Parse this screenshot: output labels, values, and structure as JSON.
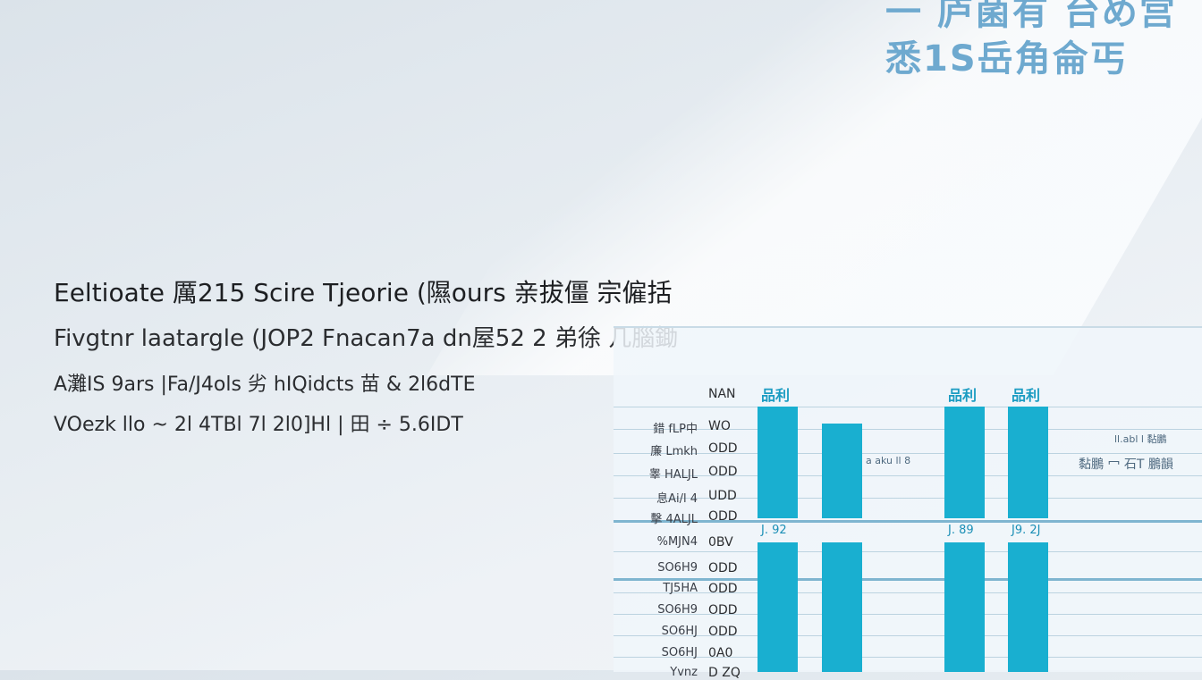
{
  "top_right": {
    "line1": "一 庐菌有 台め宫",
    "line2": "悉1S岳角侖丐",
    "color": "#6ea9cf"
  },
  "headlines": [
    "Eeltioate 厲215 Scire Tjeorie (隰ours 亲拔僵 宗僱括",
    "Fivgtnr laatargle (JOP2 Fnacan7a dn屋52 2 弟徐 几腦鋤",
    "A灘IS 9ars  |Fa/J4ols 劣 hIQidcts  苗 & 2l6dTE",
    "VOezk llo ~ 2l 4TBl 7l 2l0]Hl  | 田 ÷ 5.6IDT"
  ],
  "table": {
    "accent": "#19afd0",
    "value_header": "NAN",
    "column_headers": [
      "品利",
      "",
      "品利",
      "品利"
    ],
    "rows": [
      {
        "label": "錯 fLP中",
        "value": "WO"
      },
      {
        "label": "廉 Lmkh",
        "value": "ODD"
      },
      {
        "label": "睾 HALJL",
        "value": "ODD"
      },
      {
        "label": "息Ai/l 4",
        "value": "UDD"
      },
      {
        "label": "擊 4ALJL",
        "value": "ODD"
      },
      {
        "label": "%MJN4",
        "value": "0BV"
      },
      {
        "label": "SO6H9",
        "value": "ODD"
      },
      {
        "label": "TJ5HA",
        "value": "ODD"
      },
      {
        "label": "SO6H9",
        "value": "ODD"
      },
      {
        "label": "SO6HJ",
        "value": "ODD"
      },
      {
        "label": "SO6HJ",
        "value": "0A0"
      },
      {
        "label": "Yvnz",
        "value": "D ZQ"
      }
    ],
    "data_labels": [
      "J. 92",
      "",
      "J. 89",
      "J9. 2J"
    ],
    "faint_notes": [
      "a aku ll 8",
      "ll.abl l 黏鵬",
      "黏鵬 冖 石T 鵬韻"
    ]
  }
}
